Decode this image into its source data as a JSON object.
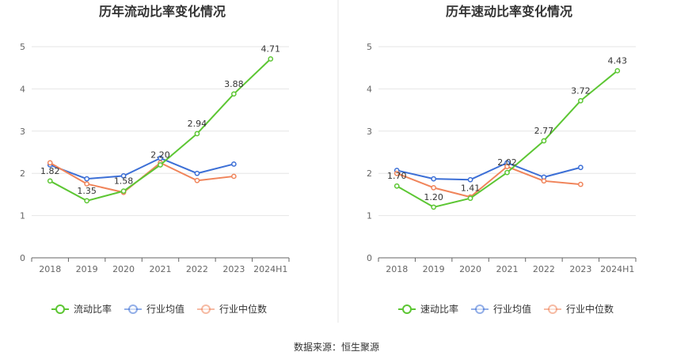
{
  "source": "数据来源：恒生聚源",
  "chart_data": [
    {
      "type": "line",
      "title": "历年流动比率变化情况",
      "categories": [
        "2018",
        "2019",
        "2020",
        "2021",
        "2022",
        "2023",
        "2024H1"
      ],
      "ylim": [
        0,
        5
      ],
      "yticks": [
        "0",
        "1",
        "2",
        "3",
        "4",
        "5"
      ],
      "grid": true,
      "legend_position": "bottom",
      "series": [
        {
          "name": "流动比率",
          "color": "#5cc633",
          "labeled": true,
          "labels": [
            "1.82",
            "1.35",
            "1.58",
            "2.20",
            "2.94",
            "3.88",
            "4.71"
          ],
          "values": [
            1.82,
            1.35,
            1.58,
            2.2,
            2.94,
            3.88,
            4.71
          ]
        },
        {
          "name": "行业均值",
          "color": "#3c6fd6",
          "labeled": false,
          "values": [
            2.2,
            1.87,
            1.94,
            2.36,
            2.0,
            2.22,
            null
          ]
        },
        {
          "name": "行业中位数",
          "color": "#f0845a",
          "labeled": false,
          "values": [
            2.25,
            1.75,
            1.55,
            2.25,
            1.83,
            1.93,
            null
          ]
        }
      ]
    },
    {
      "type": "line",
      "title": "历年速动比率变化情况",
      "categories": [
        "2018",
        "2019",
        "2020",
        "2021",
        "2022",
        "2023",
        "2024H1"
      ],
      "ylim": [
        0,
        5
      ],
      "yticks": [
        "0",
        "1",
        "2",
        "3",
        "4",
        "5"
      ],
      "grid": true,
      "legend_position": "bottom",
      "series": [
        {
          "name": "速动比率",
          "color": "#5cc633",
          "labeled": true,
          "labels": [
            "1.70",
            "1.20",
            "1.41",
            "2.02",
            "2.77",
            "3.72",
            "4.43"
          ],
          "values": [
            1.7,
            1.2,
            1.41,
            2.02,
            2.77,
            3.72,
            4.43
          ]
        },
        {
          "name": "行业均值",
          "color": "#3c6fd6",
          "labeled": false,
          "values": [
            2.07,
            1.87,
            1.85,
            2.25,
            1.91,
            2.14,
            null
          ]
        },
        {
          "name": "行业中位数",
          "color": "#f0845a",
          "labeled": false,
          "values": [
            2.0,
            1.66,
            1.44,
            2.16,
            1.82,
            1.74,
            null
          ]
        }
      ]
    }
  ]
}
